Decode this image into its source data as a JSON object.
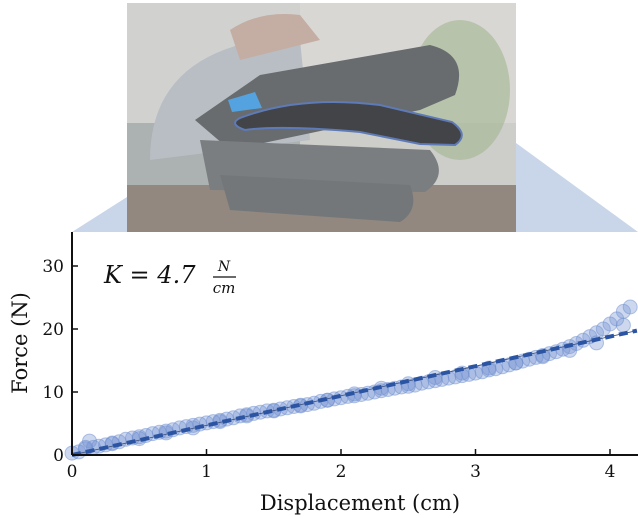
{
  "photo": {
    "description_icon": "glove-photo-icon",
    "highlight_color": "#3b5ea8"
  },
  "chart_data": {
    "type": "scatter",
    "annotation": {
      "prefix": "K = 4.7",
      "num": "N",
      "den": "cm"
    },
    "xlabel": "Displacement (cm)",
    "ylabel": "Force (N)",
    "xlim": [
      0,
      4.2
    ],
    "ylim": [
      0,
      35
    ],
    "xticks": [
      0,
      1,
      2,
      3,
      4
    ],
    "yticks": [
      0,
      10,
      20,
      30
    ],
    "grid": false,
    "colors": {
      "points": "#6f8fd0",
      "fit": "#2b55a3",
      "thin_line": "#3b4f7a",
      "callout": "#c9d6ea"
    },
    "fit": {
      "slope": 4.7,
      "intercept": 0
    },
    "series": [
      {
        "x": [
          0.0,
          0.05,
          0.1,
          0.13,
          0.16,
          0.2,
          0.25,
          0.3,
          0.35,
          0.4,
          0.45,
          0.5,
          0.55,
          0.6,
          0.65,
          0.7,
          0.75,
          0.8,
          0.85,
          0.9,
          0.95,
          1.0,
          1.05,
          1.1,
          1.15,
          1.2,
          1.25,
          1.3,
          1.35,
          1.4,
          1.45,
          1.5,
          1.55,
          1.6,
          1.65,
          1.7,
          1.75,
          1.8,
          1.85,
          1.9,
          1.95,
          2.0,
          2.05,
          2.1,
          2.15,
          2.2,
          2.25,
          2.3,
          2.35,
          2.4,
          2.45,
          2.5,
          2.55,
          2.6,
          2.65,
          2.7,
          2.75,
          2.8,
          2.85,
          2.9,
          2.95,
          3.0,
          3.05,
          3.1,
          3.15,
          3.2,
          3.25,
          3.3,
          3.35,
          3.4,
          3.45,
          3.5,
          3.55,
          3.6,
          3.65,
          3.7,
          3.75,
          3.8,
          3.85,
          3.9,
          3.95,
          4.0,
          4.05,
          4.1,
          4.15,
          4.2
        ],
        "y": [
          0.3,
          0.5,
          1.0,
          2.2,
          1.2,
          1.4,
          1.6,
          1.9,
          2.1,
          2.5,
          2.7,
          2.9,
          3.1,
          3.4,
          3.6,
          3.8,
          4.0,
          4.3,
          4.5,
          4.7,
          4.9,
          5.1,
          5.3,
          5.5,
          5.7,
          5.9,
          6.2,
          6.4,
          6.6,
          6.8,
          7.0,
          7.1,
          7.3,
          7.5,
          7.7,
          7.9,
          8.0,
          8.2,
          8.5,
          8.7,
          8.9,
          9.1,
          9.3,
          9.4,
          9.6,
          9.8,
          10.0,
          10.2,
          10.4,
          10.6,
          10.8,
          10.9,
          11.1,
          11.4,
          11.6,
          11.8,
          12.0,
          12.2,
          12.4,
          12.6,
          12.8,
          13.0,
          13.2,
          13.5,
          13.7,
          14.0,
          14.3,
          14.6,
          14.9,
          15.2,
          15.5,
          15.8,
          16.1,
          16.4,
          16.8,
          17.2,
          17.7,
          18.2,
          18.8,
          19.4,
          20.0,
          20.8,
          21.6,
          22.8,
          23.5,
          25.3
        ]
      },
      {
        "x": [
          0.1,
          0.3,
          0.5,
          0.7,
          0.9,
          1.1,
          1.3,
          1.5,
          1.7,
          1.9,
          2.1,
          2.3,
          2.5,
          2.7,
          2.9,
          3.1,
          3.3,
          3.5,
          3.7,
          3.9,
          4.1
        ],
        "y": [
          1.2,
          1.8,
          2.6,
          3.5,
          4.3,
          5.3,
          6.2,
          7.0,
          7.8,
          8.7,
          9.7,
          10.6,
          11.3,
          12.3,
          13.0,
          13.8,
          14.6,
          15.6,
          16.6,
          17.8,
          20.6
        ]
      }
    ]
  }
}
